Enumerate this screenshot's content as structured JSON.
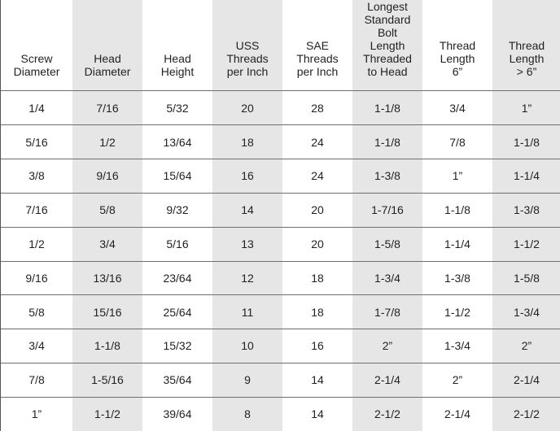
{
  "table": {
    "headers": [
      [
        "Screw",
        "Diameter"
      ],
      [
        "Head",
        "Diameter"
      ],
      [
        "Head",
        "Height"
      ],
      [
        "USS",
        "Threads",
        "per Inch"
      ],
      [
        "SAE",
        "Threads",
        "per Inch"
      ],
      [
        "Longest",
        "Standard",
        "Bolt",
        "Length",
        "Threaded",
        "to Head"
      ],
      [
        "Thread",
        "Length",
        "6”"
      ],
      [
        "Thread",
        "Length",
        "> 6”"
      ]
    ],
    "rows": [
      [
        "1/4",
        "7/16",
        "5/32",
        "20",
        "28",
        "1-1/8",
        "3/4",
        "1”"
      ],
      [
        "5/16",
        "1/2",
        "13/64",
        "18",
        "24",
        "1-1/8",
        "7/8",
        "1-1/8"
      ],
      [
        "3/8",
        "9/16",
        "15/64",
        "16",
        "24",
        "1-3/8",
        "1”",
        "1-1/4"
      ],
      [
        "7/16",
        "5/8",
        "9/32",
        "14",
        "20",
        "1-7/16",
        "1-1/8",
        "1-3/8"
      ],
      [
        "1/2",
        "3/4",
        "5/16",
        "13",
        "20",
        "1-5/8",
        "1-1/4",
        "1-1/2"
      ],
      [
        "9/16",
        "13/16",
        "23/64",
        "12",
        "18",
        "1-3/4",
        "1-3/8",
        "1-5/8"
      ],
      [
        "5/8",
        "15/16",
        "25/64",
        "11",
        "18",
        "1-7/8",
        "1-1/2",
        "1-3/4"
      ],
      [
        "3/4",
        "1-1/8",
        "15/32",
        "10",
        "16",
        "2”",
        "1-3/4",
        "2”"
      ],
      [
        "7/8",
        "1-5/16",
        "35/64",
        "9",
        "14",
        "2-1/4",
        "2”",
        "2-1/4"
      ],
      [
        "1”",
        "1-1/2",
        "39/64",
        "8",
        "14",
        "2-1/2",
        "2-1/4",
        "2-1/2"
      ]
    ]
  }
}
